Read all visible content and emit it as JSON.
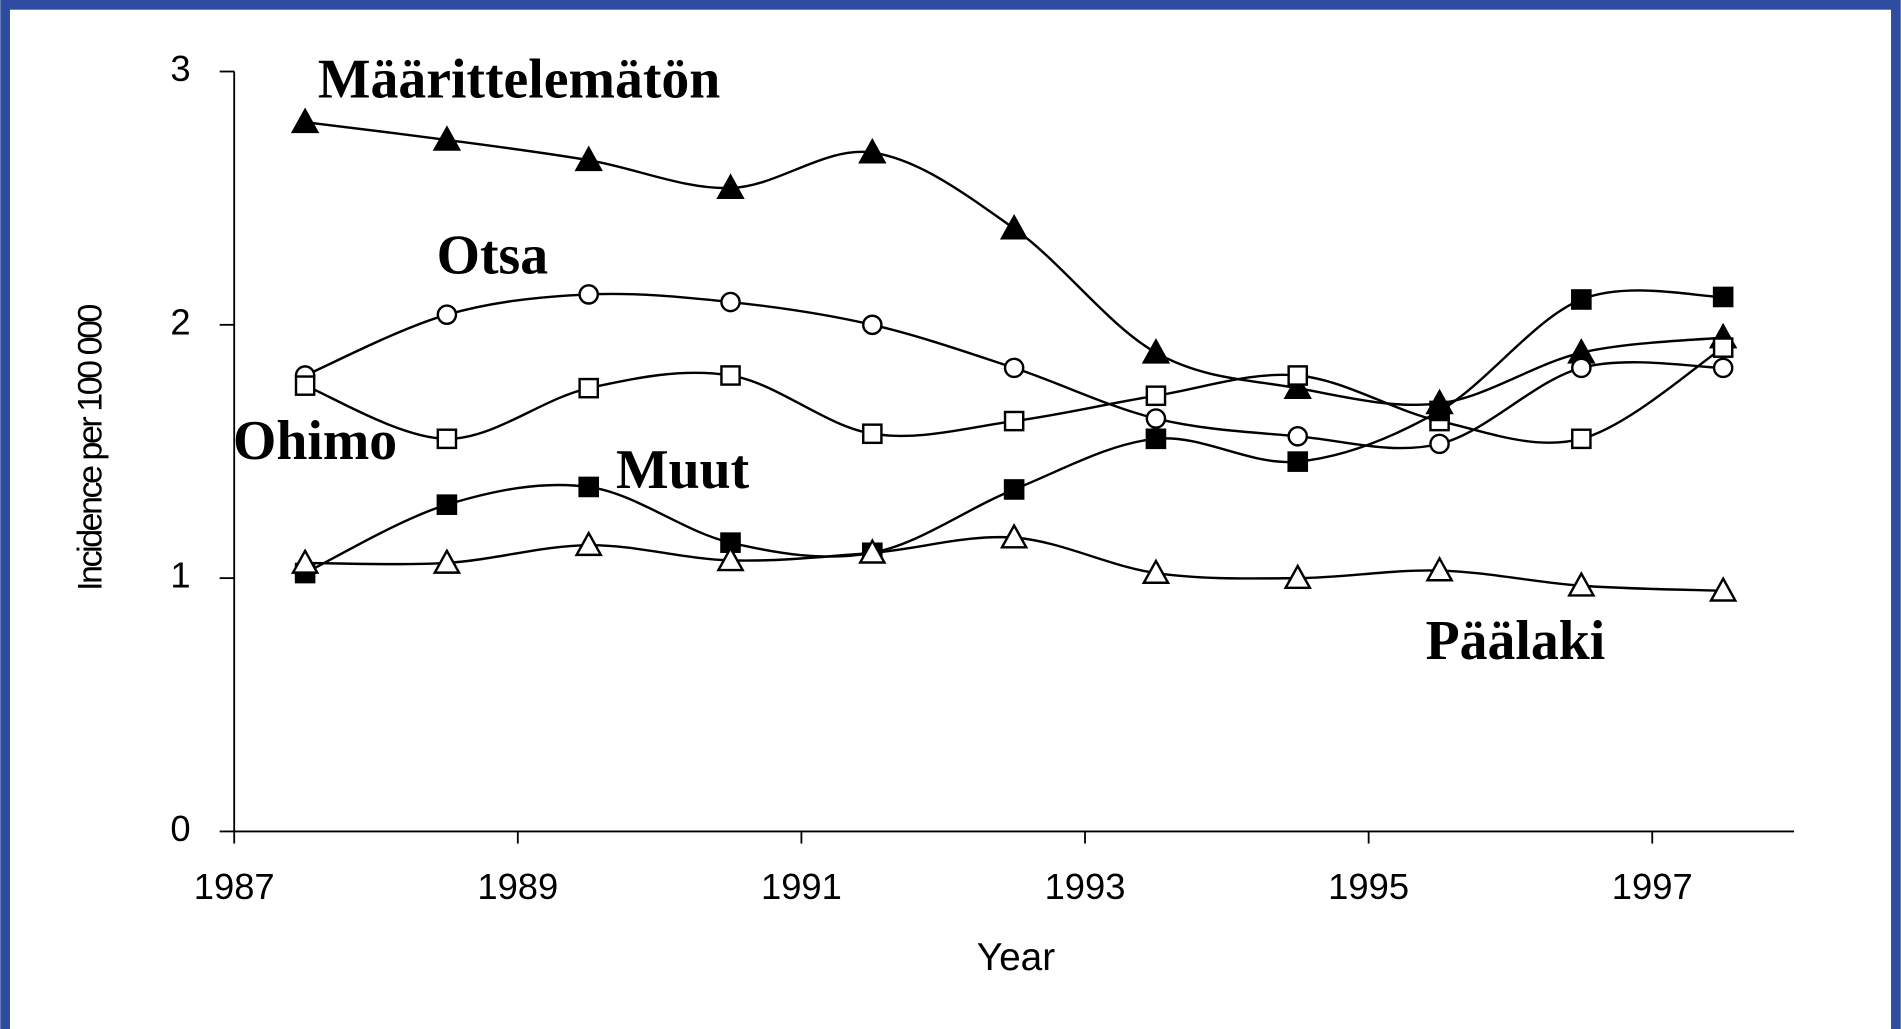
{
  "chart_data": {
    "type": "line",
    "xlabel": "Year",
    "ylabel": "Incidence per 100 000",
    "xlim": [
      1987,
      1998
    ],
    "xticks": [
      1987,
      1989,
      1991,
      1993,
      1995,
      1997
    ],
    "ylim": [
      0,
      3
    ],
    "yticks": [
      0,
      1,
      2,
      3
    ],
    "x": [
      1987.5,
      1988.5,
      1989.5,
      1990.5,
      1991.5,
      1992.5,
      1993.5,
      1994.5,
      1995.5,
      1996.5,
      1997.5
    ],
    "series": [
      {
        "name": "Määrittelemätön",
        "color": "#000000",
        "marker": "triangle",
        "marker_filled": true,
        "values": [
          2.8,
          2.73,
          2.65,
          2.54,
          2.68,
          2.38,
          1.89,
          1.75,
          1.69,
          1.89,
          1.95
        ]
      },
      {
        "name": "Otsa",
        "color": "#000000",
        "marker": "circle",
        "marker_filled": false,
        "values": [
          1.8,
          2.04,
          2.12,
          2.09,
          2.0,
          1.83,
          1.63,
          1.56,
          1.53,
          1.83,
          1.83
        ]
      },
      {
        "name": "Ohimo",
        "color": "#000000",
        "marker": "square",
        "marker_filled": false,
        "values": [
          1.76,
          1.55,
          1.75,
          1.8,
          1.57,
          1.62,
          1.72,
          1.8,
          1.62,
          1.55,
          1.91
        ]
      },
      {
        "name": "Muut",
        "color": "#000000",
        "marker": "square",
        "marker_filled": true,
        "values": [
          1.02,
          1.29,
          1.36,
          1.14,
          1.1,
          1.35,
          1.55,
          1.46,
          1.66,
          2.1,
          2.11
        ]
      },
      {
        "name": "Päälaki",
        "color": "#000000",
        "marker": "triangle",
        "marker_filled": false,
        "values": [
          1.06,
          1.06,
          1.13,
          1.07,
          1.1,
          1.16,
          1.02,
          1.0,
          1.03,
          0.97,
          0.95
        ]
      }
    ]
  }
}
